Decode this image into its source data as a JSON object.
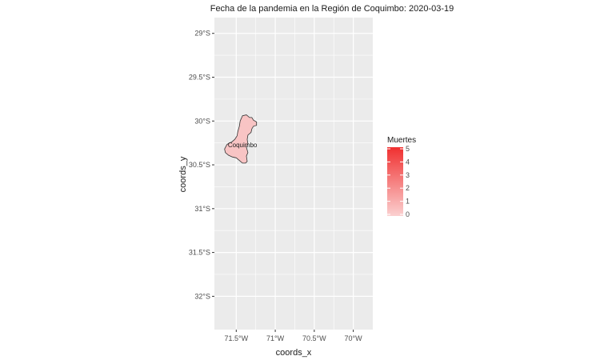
{
  "title": "Fecha de la pandemia en la Región de Coquimbo: 2020-03-19",
  "x_axis": {
    "title": "coords_x",
    "ticks": [
      {
        "value": -71.5,
        "label": "71.5°W"
      },
      {
        "value": -71.0,
        "label": "71°W"
      },
      {
        "value": -70.5,
        "label": "70.5°W"
      },
      {
        "value": -70.0,
        "label": "70°W"
      }
    ],
    "range": [
      -71.78,
      -69.75
    ]
  },
  "y_axis": {
    "title": "coords_y",
    "ticks": [
      {
        "value": -29.0,
        "label": "29°S"
      },
      {
        "value": -29.5,
        "label": "29.5°S"
      },
      {
        "value": -30.0,
        "label": "30°S"
      },
      {
        "value": -30.5,
        "label": "30.5°S"
      },
      {
        "value": -31.0,
        "label": "31°S"
      },
      {
        "value": -31.5,
        "label": "31.5°S"
      },
      {
        "value": -32.0,
        "label": "32°S"
      }
    ],
    "range": [
      -32.38,
      -28.82
    ]
  },
  "region": {
    "name": "Coquimbo",
    "deaths": 0,
    "fill": "#f8c4c4",
    "label_lon": -71.42,
    "label_lat": -30.3,
    "outline": [
      [
        -71.42,
        -29.94
      ],
      [
        -71.37,
        -29.93
      ],
      [
        -71.33,
        -29.96
      ],
      [
        -71.3,
        -29.96
      ],
      [
        -71.28,
        -29.99
      ],
      [
        -71.24,
        -30.01
      ],
      [
        -71.24,
        -30.05
      ],
      [
        -71.28,
        -30.06
      ],
      [
        -71.3,
        -30.09
      ],
      [
        -71.31,
        -30.13
      ],
      [
        -71.35,
        -30.16
      ],
      [
        -71.36,
        -30.21
      ],
      [
        -71.35,
        -30.26
      ],
      [
        -71.37,
        -30.3
      ],
      [
        -71.35,
        -30.36
      ],
      [
        -71.37,
        -30.4
      ],
      [
        -71.36,
        -30.46
      ],
      [
        -71.38,
        -30.48
      ],
      [
        -71.42,
        -30.48
      ],
      [
        -71.46,
        -30.45
      ],
      [
        -71.5,
        -30.42
      ],
      [
        -71.55,
        -30.41
      ],
      [
        -71.6,
        -30.39
      ],
      [
        -71.64,
        -30.36
      ],
      [
        -71.65,
        -30.32
      ],
      [
        -71.62,
        -30.27
      ],
      [
        -71.59,
        -30.25
      ],
      [
        -71.56,
        -30.24
      ],
      [
        -71.52,
        -30.21
      ],
      [
        -71.49,
        -30.17
      ],
      [
        -71.48,
        -30.12
      ],
      [
        -71.46,
        -30.06
      ],
      [
        -71.45,
        -30.0
      ]
    ]
  },
  "legend": {
    "title": "Muertes",
    "min": 0,
    "max": 5,
    "labels": [
      "5",
      "4",
      "3",
      "2",
      "1",
      "0"
    ],
    "color_low": "#fbd0d0",
    "color_high": "#f03030"
  },
  "colors": {
    "panel": "#ebebeb",
    "grid": "#ffffff",
    "outline": "#333333"
  }
}
